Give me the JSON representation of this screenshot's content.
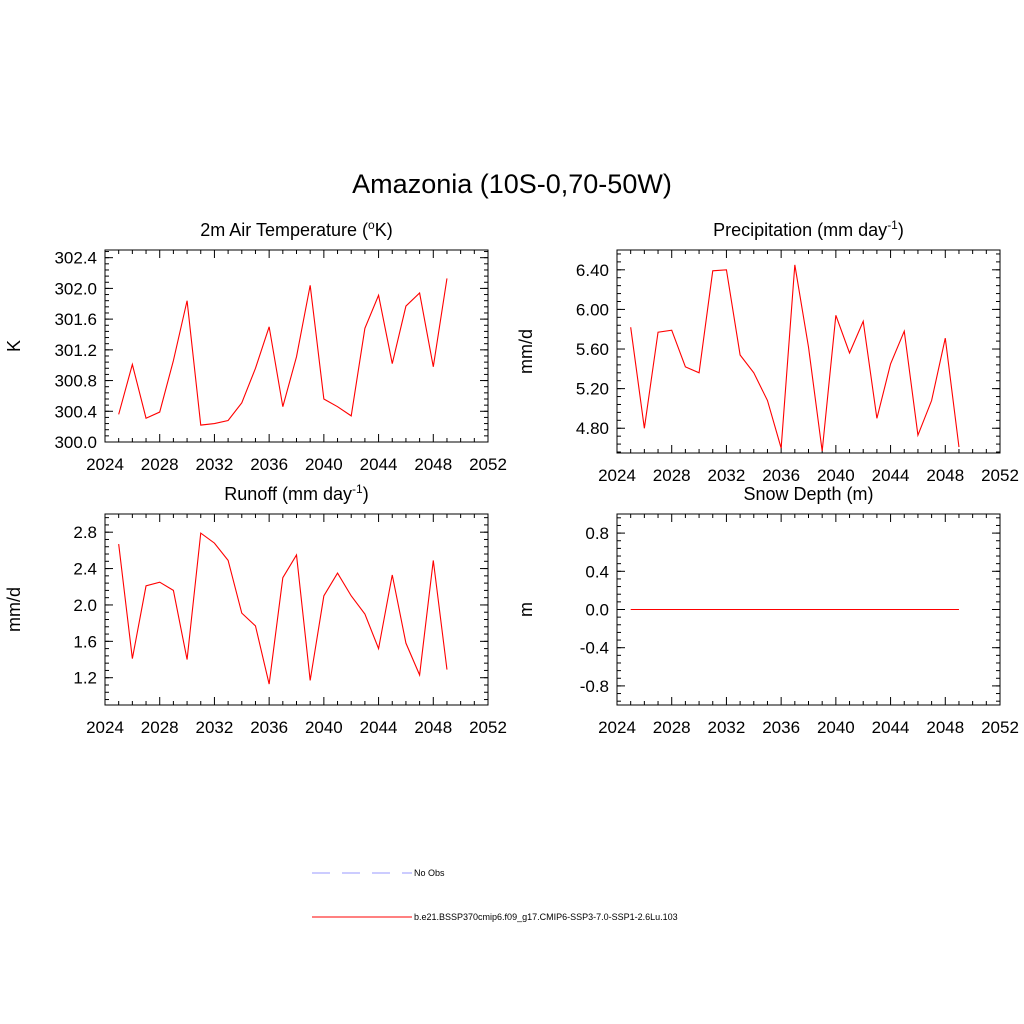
{
  "title": "Amazonia (10S-0,70-50W)",
  "chart_data": [
    {
      "type": "line",
      "title_main": "2m Air Temperature (",
      "title_sup": "o",
      "title_tail": "K)",
      "ylabel": "K",
      "xlim": [
        2024,
        2052
      ],
      "ylim": [
        300.0,
        302.5
      ],
      "xticks": [
        2024,
        2028,
        2032,
        2036,
        2040,
        2044,
        2048,
        2052
      ],
      "yticks": [
        300.0,
        300.4,
        300.8,
        301.2,
        301.6,
        302.0,
        302.4
      ],
      "ytick_labels": [
        "300.0",
        "300.4",
        "300.8",
        "301.2",
        "301.6",
        "302.0",
        "302.4"
      ],
      "series": [
        {
          "name": "b.e21.BSSP370cmip6.f09_g17.CMIP6-SSP3-7.0-SSP1-2.6Lu.103",
          "color": "#ff0000",
          "x": [
            2025,
            2026,
            2027,
            2028,
            2029,
            2030,
            2031,
            2032,
            2033,
            2034,
            2035,
            2036,
            2037,
            2038,
            2039,
            2040,
            2041,
            2042,
            2043,
            2044,
            2045,
            2046,
            2047,
            2048,
            2049
          ],
          "values": [
            300.36,
            301.01,
            300.31,
            300.39,
            301.06,
            301.84,
            300.22,
            300.24,
            300.28,
            300.51,
            300.96,
            301.5,
            300.46,
            301.11,
            302.04,
            300.56,
            300.46,
            300.34,
            301.48,
            301.91,
            301.02,
            301.77,
            301.94,
            300.98,
            302.13
          ]
        }
      ]
    },
    {
      "type": "line",
      "title_main": "Precipitation (mm day",
      "title_sup": "-1",
      "title_tail": ")",
      "ylabel": "mm/d",
      "xlim": [
        2024,
        2052
      ],
      "ylim": [
        4.55,
        6.6
      ],
      "xticks": [
        2024,
        2028,
        2032,
        2036,
        2040,
        2044,
        2048,
        2052
      ],
      "yticks": [
        4.8,
        5.2,
        5.6,
        6.0,
        6.4
      ],
      "ytick_labels": [
        "4.80",
        "5.20",
        "5.60",
        "6.00",
        "6.40"
      ],
      "series": [
        {
          "name": "b.e21.BSSP370cmip6.f09_g17.CMIP6-SSP3-7.0-SSP1-2.6Lu.103",
          "color": "#ff0000",
          "x": [
            2025,
            2026,
            2027,
            2028,
            2029,
            2030,
            2031,
            2032,
            2033,
            2034,
            2035,
            2036,
            2037,
            2038,
            2039,
            2040,
            2041,
            2042,
            2043,
            2044,
            2045,
            2046,
            2047,
            2048,
            2049
          ],
          "values": [
            5.82,
            4.8,
            5.77,
            5.79,
            5.42,
            5.36,
            6.39,
            6.4,
            5.54,
            5.36,
            5.08,
            4.6,
            6.45,
            5.62,
            4.57,
            5.94,
            5.56,
            5.88,
            4.9,
            5.45,
            5.78,
            4.73,
            5.08,
            5.71,
            4.61
          ]
        }
      ]
    },
    {
      "type": "line",
      "title_main": "Runoff (mm day",
      "title_sup": "-1",
      "title_tail": ")",
      "ylabel": "mm/d",
      "xlim": [
        2024,
        2052
      ],
      "ylim": [
        0.9,
        3.0
      ],
      "xticks": [
        2024,
        2028,
        2032,
        2036,
        2040,
        2044,
        2048,
        2052
      ],
      "yticks": [
        1.2,
        1.6,
        2.0,
        2.4,
        2.8
      ],
      "ytick_labels": [
        "1.2",
        "1.6",
        "2.0",
        "2.4",
        "2.8"
      ],
      "series": [
        {
          "name": "b.e21.BSSP370cmip6.f09_g17.CMIP6-SSP3-7.0-SSP1-2.6Lu.103",
          "color": "#ff0000",
          "x": [
            2025,
            2026,
            2027,
            2028,
            2029,
            2030,
            2031,
            2032,
            2033,
            2034,
            2035,
            2036,
            2037,
            2038,
            2039,
            2040,
            2041,
            2042,
            2043,
            2044,
            2045,
            2046,
            2047,
            2048,
            2049
          ],
          "values": [
            2.67,
            1.41,
            2.21,
            2.25,
            2.16,
            1.4,
            2.79,
            2.68,
            2.49,
            1.91,
            1.77,
            1.13,
            2.3,
            2.55,
            1.17,
            2.1,
            2.35,
            2.1,
            1.9,
            1.52,
            2.33,
            1.58,
            1.23,
            2.49,
            1.29
          ]
        }
      ]
    },
    {
      "type": "line",
      "title_main": "Snow Depth (m)",
      "title_sup": "",
      "title_tail": "",
      "ylabel": "m",
      "xlim": [
        2024,
        2052
      ],
      "ylim": [
        -1.0,
        1.0
      ],
      "xticks": [
        2024,
        2028,
        2032,
        2036,
        2040,
        2044,
        2048,
        2052
      ],
      "yticks": [
        -0.8,
        -0.4,
        0.0,
        0.4,
        0.8
      ],
      "ytick_labels": [
        "-0.8",
        "-0.4",
        "0.0",
        "0.4",
        "0.8"
      ],
      "series": [
        {
          "name": "b.e21.BSSP370cmip6.f09_g17.CMIP6-SSP3-7.0-SSP1-2.6Lu.103",
          "color": "#ff0000",
          "x": [
            2025,
            2049
          ],
          "values": [
            0.0,
            0.0
          ]
        }
      ]
    }
  ],
  "legend": [
    {
      "label": "No Obs",
      "color": "#9999ff",
      "style": "dashed"
    },
    {
      "label": "b.e21.BSSP370cmip6.f09_g17.CMIP6-SSP3-7.0-SSP1-2.6Lu.103",
      "color": "#ff0000",
      "style": "solid"
    }
  ]
}
